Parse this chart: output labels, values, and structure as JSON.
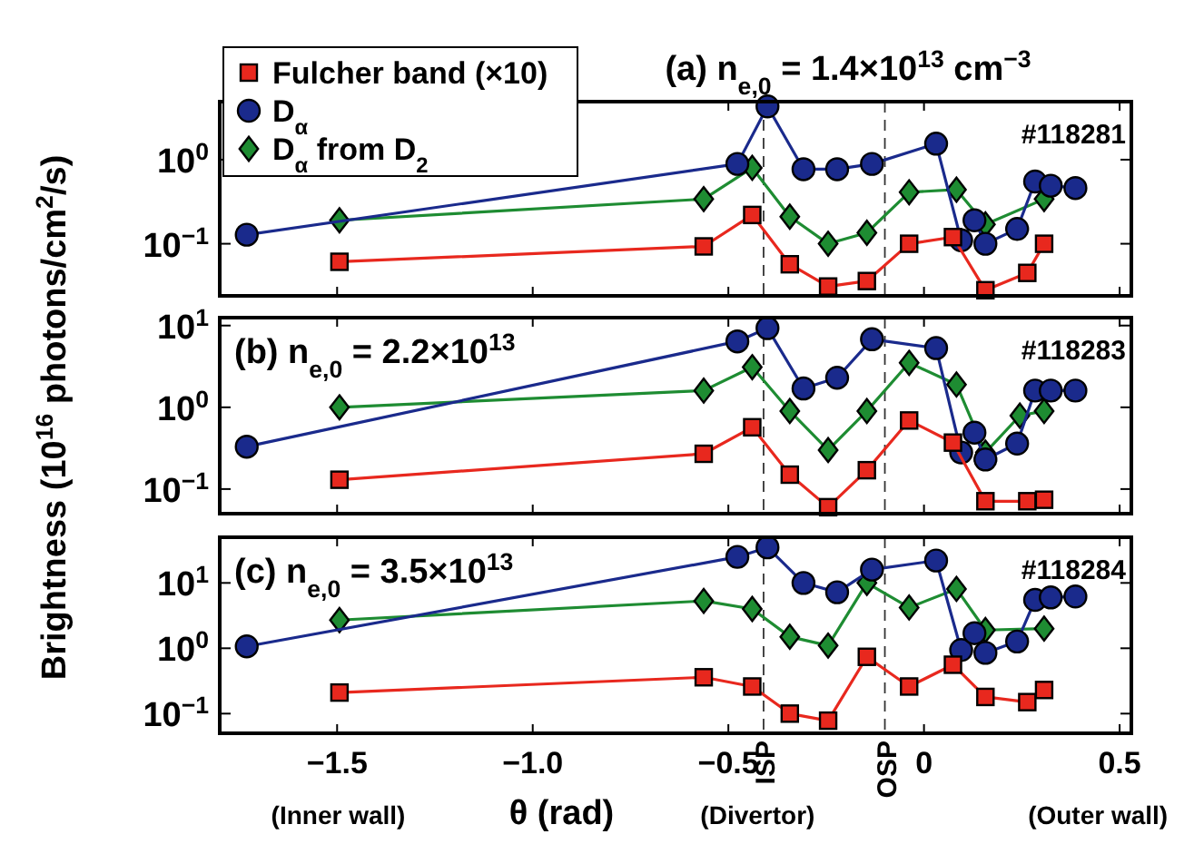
{
  "chart_data": [
    {
      "type": "line",
      "title": "(a) n$_{e,0}$ = 1.4×10$^{13}$ cm$^{−3}$",
      "annotations": [
        "#118281"
      ],
      "xlim": [
        -1.8,
        0.53
      ],
      "xticks": [
        -1.5,
        -1.0,
        -0.5,
        0,
        0.5
      ],
      "ylim": [
        0.024,
        4.9
      ],
      "yticks": [
        {
          "value": 1,
          "label": "10$^{0}$"
        },
        {
          "value": 0.1,
          "label": "10$^{−1}$"
        }
      ],
      "log": "y",
      "tick_labels": "y",
      "legend": "top left",
      "ref_lines": [
        {
          "axis": "x",
          "value": -0.41
        },
        {
          "axis": "x",
          "value": -0.1
        }
      ],
      "series": [
        {
          "name": "Fulcher band (×10)",
          "color": "#e8281e",
          "marker": "square",
          "x": [
            -1.494,
            -0.563,
            -0.439,
            -0.343,
            -0.245,
            -0.146,
            -0.038,
            0.074,
            0.157,
            0.264,
            0.307
          ],
          "values": [
            0.061,
            0.093,
            0.22,
            0.057,
            0.031,
            0.036,
            0.1,
            0.12,
            0.028,
            0.045,
            0.1
          ]
        },
        {
          "name": "D$_{α}$",
          "color": "#1a2a8c",
          "marker": "circle",
          "x": [
            -1.731,
            -0.477,
            -0.4,
            -0.308,
            -0.222,
            -0.133,
            0.031,
            0.095,
            0.129,
            0.157,
            0.238,
            0.284,
            0.324,
            0.387
          ],
          "values": [
            0.128,
            0.89,
            4.3,
            0.77,
            0.77,
            0.89,
            1.55,
            0.11,
            0.19,
            0.1,
            0.15,
            0.55,
            0.49,
            0.46
          ]
        },
        {
          "name": "D$_{α}$ from D$_{2}$",
          "color": "#1e8c32",
          "marker": "diamond",
          "x": [
            -1.494,
            -0.563,
            -0.439,
            -0.343,
            -0.245,
            -0.146,
            -0.038,
            0.083,
            0.157,
            0.307
          ],
          "values": [
            0.19,
            0.34,
            0.8,
            0.21,
            0.1,
            0.135,
            0.41,
            0.44,
            0.17,
            0.34
          ]
        }
      ]
    },
    {
      "type": "line",
      "title": "(b) n$_{e,0}$ = 2.2×10$^{13}$",
      "annotations": [
        "#118283"
      ],
      "ylabel": "Brightness (10$^{16}$ photons/cm$^{2}$/s)",
      "xlim": [
        -1.8,
        0.53
      ],
      "xticks": [
        -1.5,
        -1.0,
        -0.5,
        0,
        0.5
      ],
      "ylim": [
        0.05,
        12.5
      ],
      "yticks": [
        {
          "value": 10,
          "label": "10$^{1}$"
        },
        {
          "value": 1,
          "label": "10$^{0}$"
        },
        {
          "value": 0.1,
          "label": "10$^{−1}$"
        }
      ],
      "log": "y",
      "tick_labels": "y",
      "ref_lines": [
        {
          "axis": "x",
          "value": -0.41
        },
        {
          "axis": "x",
          "value": -0.1
        }
      ],
      "series": [
        {
          "color": "#e8281e",
          "marker": "square",
          "x": [
            -1.494,
            -0.563,
            -0.439,
            -0.343,
            -0.245,
            -0.146,
            -0.038,
            0.074,
            0.157,
            0.264,
            0.307
          ],
          "values": [
            0.13,
            0.27,
            0.57,
            0.15,
            0.06,
            0.17,
            0.69,
            0.37,
            0.071,
            0.071,
            0.074
          ]
        },
        {
          "color": "#1a2a8c",
          "marker": "circle",
          "x": [
            -1.731,
            -0.477,
            -0.4,
            -0.308,
            -0.222,
            -0.133,
            0.031,
            0.095,
            0.129,
            0.157,
            0.238,
            0.284,
            0.324,
            0.387
          ],
          "values": [
            0.33,
            6.4,
            9.3,
            1.7,
            2.3,
            6.8,
            5.3,
            0.28,
            0.49,
            0.23,
            0.36,
            1.6,
            1.6,
            1.6
          ]
        },
        {
          "color": "#1e8c32",
          "marker": "diamond",
          "x": [
            -1.494,
            -0.563,
            -0.439,
            -0.343,
            -0.245,
            -0.146,
            -0.038,
            0.083,
            0.157,
            0.245,
            0.307
          ],
          "values": [
            1.0,
            1.6,
            3.1,
            0.9,
            0.3,
            0.9,
            3.5,
            1.9,
            0.28,
            0.79,
            0.9
          ]
        }
      ]
    },
    {
      "type": "line",
      "title": "(c) n$_{e,0}$ = 3.5×10$^{13}$",
      "annotations": [
        "#118284",
        "(Inner wall)",
        "(Divertor)",
        "(Outer wall)"
      ],
      "xlabel": "θ (rad)",
      "xlim": [
        -1.8,
        0.53
      ],
      "xticks": [
        {
          "value": -1.5,
          "label": "−1.5"
        },
        {
          "value": -1.0,
          "label": "−1.0"
        },
        {
          "value": -0.5,
          "label": "−0.5"
        },
        0,
        0.5
      ],
      "ylim": [
        0.05,
        50
      ],
      "yticks": [
        {
          "value": 10,
          "label": "10$^{1}$"
        },
        {
          "value": 1,
          "label": "10$^{0}$"
        },
        {
          "value": 0.1,
          "label": "10$^{−1}$"
        }
      ],
      "log": "y",
      "ref_lines": [
        {
          "axis": "x",
          "value": -0.41,
          "label": "ISP"
        },
        {
          "axis": "x",
          "value": -0.1,
          "label": "OSP"
        }
      ],
      "series": [
        {
          "color": "#e8281e",
          "marker": "square",
          "x": [
            -1.494,
            -0.563,
            -0.439,
            -0.343,
            -0.245,
            -0.146,
            -0.038,
            0.074,
            0.157,
            0.264,
            0.307
          ],
          "values": [
            0.21,
            0.36,
            0.26,
            0.1,
            0.078,
            0.74,
            0.26,
            0.56,
            0.18,
            0.15,
            0.23
          ]
        },
        {
          "color": "#1a2a8c",
          "marker": "circle",
          "x": [
            -1.731,
            -0.477,
            -0.4,
            -0.308,
            -0.222,
            -0.133,
            0.031,
            0.095,
            0.129,
            0.157,
            0.238,
            0.284,
            0.324,
            0.387
          ],
          "values": [
            1.07,
            25,
            35,
            10,
            7.2,
            16,
            22,
            0.94,
            1.7,
            0.85,
            1.27,
            5.5,
            6,
            6.2
          ]
        },
        {
          "color": "#1e8c32",
          "marker": "diamond",
          "x": [
            -1.494,
            -0.563,
            -0.439,
            -0.343,
            -0.245,
            -0.146,
            -0.038,
            0.083,
            0.157,
            0.307
          ],
          "values": [
            2.7,
            5.3,
            4,
            1.5,
            1.1,
            10,
            4.2,
            8.1,
            1.9,
            2.0
          ]
        }
      ]
    }
  ]
}
